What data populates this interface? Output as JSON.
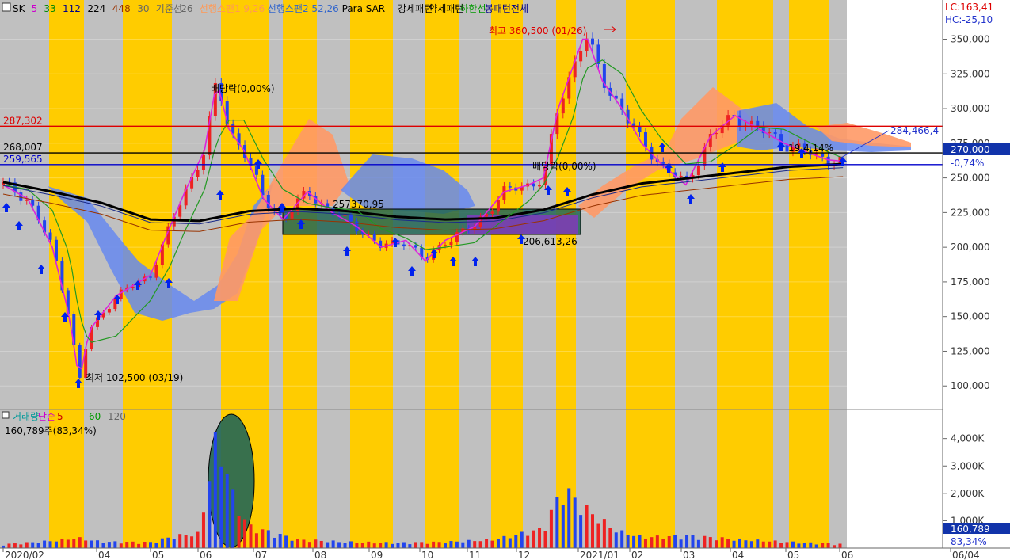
{
  "legend": {
    "items": [
      {
        "text": "SK",
        "color": "#000000"
      },
      {
        "text": "5",
        "color": "#cc00cc"
      },
      {
        "text": "33",
        "color": "#008800"
      },
      {
        "text": "112",
        "color": "#000088"
      },
      {
        "text": "224",
        "color": "#000000"
      },
      {
        "text": "448",
        "color": "#993300"
      },
      {
        "text": "30",
        "color": "#666666"
      },
      {
        "text": "기준선",
        "color": "#666666"
      },
      {
        "text": "26",
        "color": "#666666"
      },
      {
        "text": "선행스팬1 9,26",
        "color": "#ff9955"
      },
      {
        "text": "선행스팬2 52,26",
        "color": "#3366cc"
      },
      {
        "text": "Para SAR",
        "color": "#000000"
      },
      {
        "text": "강세패턴",
        "color": "#000000"
      },
      {
        "text": "약세패턴",
        "color": "#000000"
      },
      {
        "text": "하한선",
        "color": "#009900"
      },
      {
        "text": "봉패턴전체",
        "color": "#000088"
      }
    ]
  },
  "corner": {
    "lc": "LC:163,41",
    "hc": "HC:-25,10"
  },
  "volume_legend": {
    "items": [
      {
        "text": "거래량",
        "color": "#009999"
      },
      {
        "text": "단순",
        "color": "#cc00cc"
      },
      {
        "text": "5",
        "color": "#cc0000"
      },
      {
        "text": "20",
        "color": "#ffcc00"
      },
      {
        "text": "60",
        "color": "#009900"
      },
      {
        "text": "120",
        "color": "#666666"
      }
    ],
    "value": "160,789주(83,34%)"
  },
  "annotations": {
    "high": "최고 360,500 (01/26)",
    "low": "최저 102,500 (03/19)",
    "dividend1": "배당락(0,00%)",
    "dividend2": "배당락(0,00%)",
    "box_label": "257370,95",
    "box_low": "206,613,26",
    "pct": "19,4,14%",
    "trend_value": "284,466,4"
  },
  "hlines": [
    {
      "label": "287,302",
      "value": 287302,
      "color": "#dd0000"
    },
    {
      "label": "268,007",
      "value": 268007,
      "color": "#000000"
    },
    {
      "label": "259,565",
      "value": 259565,
      "color": "#0000cc"
    }
  ],
  "price_box": {
    "value": "270,000",
    "change": "-0,74%"
  },
  "volume_box": {
    "value": "160,789",
    "pct": "83,34%"
  },
  "colors": {
    "band_gold": "#ffcc00",
    "band_gray": "#c0c0c0",
    "up": "#ee2222",
    "down": "#2244ee",
    "ma5": "#dd22dd",
    "ma33": "#229922",
    "ma224": "#000000",
    "cloud1": "#ff9966",
    "cloud2": "#6688ee"
  },
  "chart_data": {
    "type": "candlestick",
    "x_ticks": [
      "2020/02",
      "04",
      "05",
      "06",
      "07",
      "08",
      "09",
      "10",
      "11",
      "12",
      "2021/01",
      "02",
      "03",
      "04",
      "05",
      "06",
      "06/04"
    ],
    "y_ticks": [
      "350,000",
      "325,000",
      "300,000",
      "275,000",
      "250,000",
      "225,000",
      "200,000",
      "175,000",
      "150,000",
      "125,000",
      "100,000"
    ],
    "y_range": [
      83000,
      368000
    ],
    "volume_ticks": [
      "4,000K",
      "3,000K",
      "2,000K",
      "1,000K"
    ],
    "volume_range": [
      0,
      4800000
    ],
    "close_series": [
      {
        "m": 0,
        "v": 245000
      },
      {
        "m": 0.5,
        "v": 235000
      },
      {
        "m": 1.0,
        "v": 200000
      },
      {
        "m": 1.35,
        "v": 150000
      },
      {
        "m": 1.55,
        "v": 103000
      },
      {
        "m": 1.75,
        "v": 140000
      },
      {
        "m": 2.3,
        "v": 165000
      },
      {
        "m": 3.0,
        "v": 180000
      },
      {
        "m": 3.4,
        "v": 215000
      },
      {
        "m": 3.7,
        "v": 240000
      },
      {
        "m": 4.1,
        "v": 270000
      },
      {
        "m": 4.35,
        "v": 320000
      },
      {
        "m": 4.6,
        "v": 285000
      },
      {
        "m": 4.9,
        "v": 270000
      },
      {
        "m": 5.3,
        "v": 235000
      },
      {
        "m": 5.7,
        "v": 220000
      },
      {
        "m": 6.2,
        "v": 240000
      },
      {
        "m": 6.7,
        "v": 225000
      },
      {
        "m": 7.2,
        "v": 215000
      },
      {
        "m": 7.7,
        "v": 200000
      },
      {
        "m": 8.2,
        "v": 205000
      },
      {
        "m": 8.6,
        "v": 190000
      },
      {
        "m": 9.0,
        "v": 205000
      },
      {
        "m": 9.6,
        "v": 215000
      },
      {
        "m": 10.2,
        "v": 240000
      },
      {
        "m": 10.7,
        "v": 245000
      },
      {
        "m": 11.0,
        "v": 250000
      },
      {
        "m": 11.3,
        "v": 300000
      },
      {
        "m": 11.6,
        "v": 330000
      },
      {
        "m": 11.85,
        "v": 355000
      },
      {
        "m": 12.2,
        "v": 320000
      },
      {
        "m": 12.6,
        "v": 300000
      },
      {
        "m": 13.0,
        "v": 275000
      },
      {
        "m": 13.4,
        "v": 260000
      },
      {
        "m": 13.9,
        "v": 245000
      },
      {
        "m": 14.4,
        "v": 280000
      },
      {
        "m": 14.9,
        "v": 295000
      },
      {
        "m": 15.4,
        "v": 285000
      },
      {
        "m": 15.9,
        "v": 275000
      },
      {
        "m": 16.4,
        "v": 268000
      },
      {
        "m": 16.8,
        "v": 263000
      },
      {
        "m": 17.1,
        "v": 262000
      }
    ],
    "ma224_series": [
      {
        "m": 0,
        "v": 247000
      },
      {
        "m": 1,
        "v": 240000
      },
      {
        "m": 2,
        "v": 232000
      },
      {
        "m": 3,
        "v": 220000
      },
      {
        "m": 4,
        "v": 219000
      },
      {
        "m": 5,
        "v": 226000
      },
      {
        "m": 6,
        "v": 228000
      },
      {
        "m": 7,
        "v": 226000
      },
      {
        "m": 8,
        "v": 222000
      },
      {
        "m": 9,
        "v": 220000
      },
      {
        "m": 10,
        "v": 221000
      },
      {
        "m": 11,
        "v": 227000
      },
      {
        "m": 12,
        "v": 238000
      },
      {
        "m": 13,
        "v": 246000
      },
      {
        "m": 14,
        "v": 250000
      },
      {
        "m": 15,
        "v": 254000
      },
      {
        "m": 16,
        "v": 258000
      },
      {
        "m": 17.1,
        "v": 260000
      }
    ],
    "volume_series": [
      {
        "m": 0,
        "v": 150000
      },
      {
        "m": 1,
        "v": 300000
      },
      {
        "m": 1.5,
        "v": 420000
      },
      {
        "m": 2,
        "v": 260000
      },
      {
        "m": 3,
        "v": 240000
      },
      {
        "m": 3.5,
        "v": 500000
      },
      {
        "m": 4.0,
        "v": 600000
      },
      {
        "m": 4.3,
        "v": 4300000
      },
      {
        "m": 4.5,
        "v": 3700000
      },
      {
        "m": 4.7,
        "v": 2000000
      },
      {
        "m": 5,
        "v": 900000
      },
      {
        "m": 6,
        "v": 350000
      },
      {
        "m": 7,
        "v": 250000
      },
      {
        "m": 8,
        "v": 220000
      },
      {
        "m": 9,
        "v": 250000
      },
      {
        "m": 10,
        "v": 350000
      },
      {
        "m": 11,
        "v": 800000
      },
      {
        "m": 11.4,
        "v": 2500000
      },
      {
        "m": 11.8,
        "v": 1700000
      },
      {
        "m": 12.5,
        "v": 700000
      },
      {
        "m": 13,
        "v": 450000
      },
      {
        "m": 14,
        "v": 500000
      },
      {
        "m": 15,
        "v": 350000
      },
      {
        "m": 16,
        "v": 250000
      },
      {
        "m": 17.1,
        "v": 160789
      }
    ]
  }
}
